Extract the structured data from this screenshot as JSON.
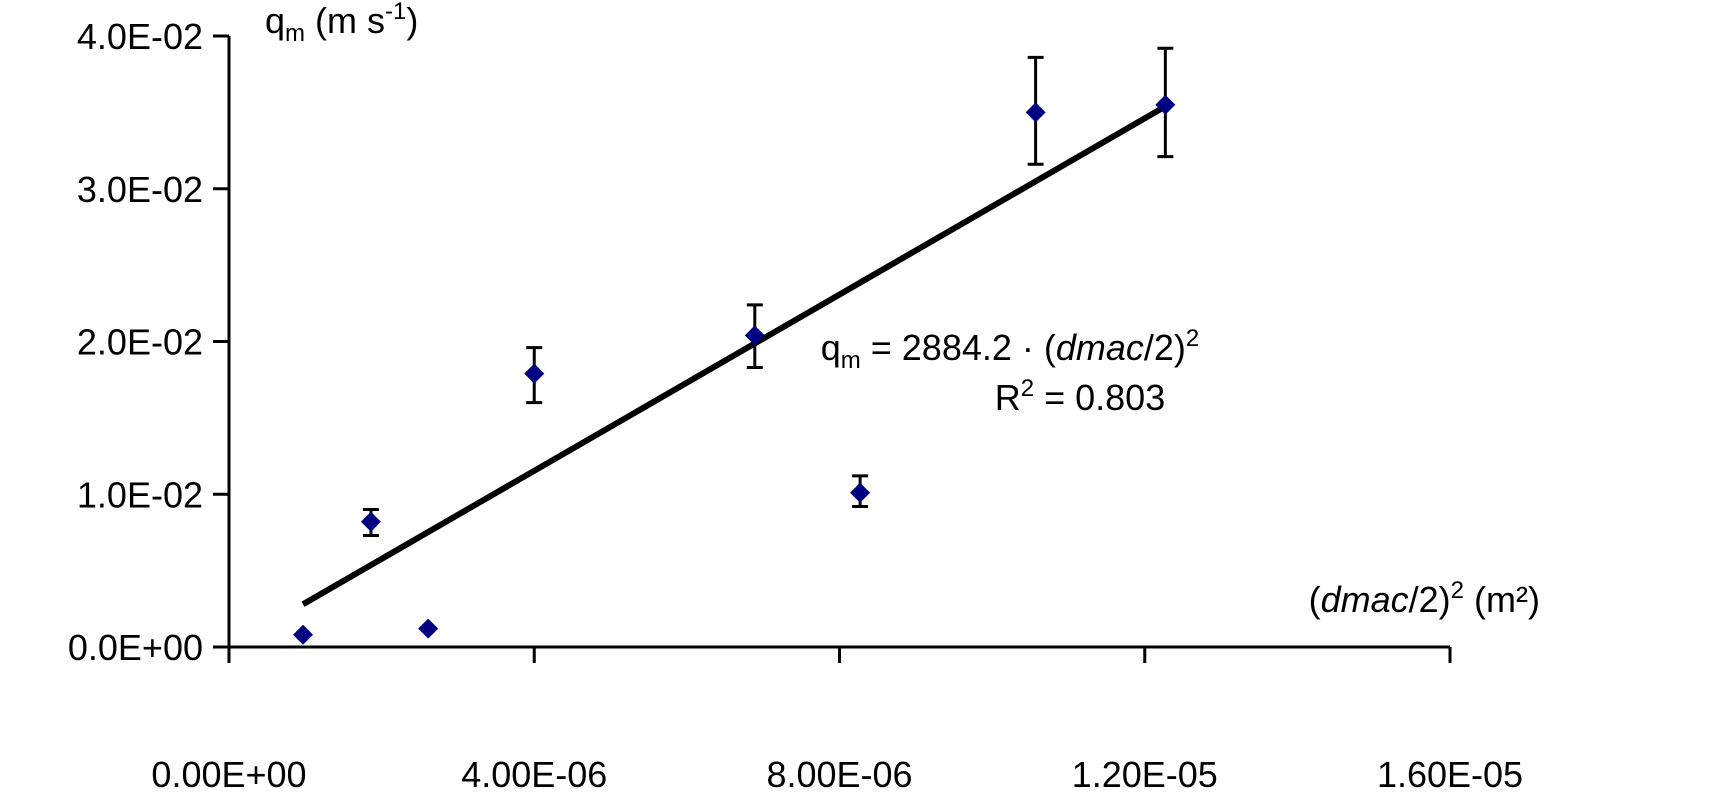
{
  "chart_data": {
    "type": "scatter",
    "title": "",
    "ylabel": {
      "base": "q",
      "sub": "m",
      "unit": " (m s",
      "sup": "-1",
      "close": ")"
    },
    "xlabel": {
      "open": "(",
      "var": "dmac",
      "rest": "/2)",
      "sup": "2",
      "unit": " (m²)"
    },
    "xlim": [
      0,
      1.6e-05
    ],
    "ylim": [
      0,
      0.04
    ],
    "xticks": [
      "0.00E+00",
      "4.00E-06",
      "8.00E-06",
      "1.20E-05",
      "1.60E-05"
    ],
    "xtick_values": [
      0,
      4e-06,
      8e-06,
      1.2e-05,
      1.6e-05
    ],
    "yticks": [
      "0.0E+00",
      "1.0E-02",
      "2.0E-02",
      "3.0E-02",
      "4.0E-02"
    ],
    "ytick_values": [
      0,
      0.01,
      0.02,
      0.03,
      0.04
    ],
    "grid": false,
    "series": [
      {
        "marker": "diamond",
        "color": "#000080",
        "points": [
          {
            "x": 9.7e-07,
            "y": 0.0008,
            "err_low": 0.0008,
            "err_high": 0.0008
          },
          {
            "x": 1.86e-06,
            "y": 0.0082,
            "err_low": 0.0073,
            "err_high": 0.009
          },
          {
            "x": 2.61e-06,
            "y": 0.0012,
            "err_low": 0.0012,
            "err_high": 0.0012
          },
          {
            "x": 4e-06,
            "y": 0.0179,
            "err_low": 0.016,
            "err_high": 0.0196
          },
          {
            "x": 6.89e-06,
            "y": 0.0204,
            "err_low": 0.0183,
            "err_high": 0.0224
          },
          {
            "x": 8.27e-06,
            "y": 0.0101,
            "err_low": 0.0092,
            "err_high": 0.0112
          },
          {
            "x": 1.057e-05,
            "y": 0.035,
            "err_low": 0.0316,
            "err_high": 0.0386
          },
          {
            "x": 1.227e-05,
            "y": 0.0355,
            "err_low": 0.0321,
            "err_high": 0.0392
          }
        ]
      }
    ],
    "trendline": {
      "type": "linear-through-origin",
      "slope": 2884.2,
      "x_range": [
        9.7e-07,
        1.227e-05
      ],
      "color": "#000000"
    },
    "equation": {
      "lhs": "q",
      "lhs_sub": "m",
      "text": " = 2884.2 · (",
      "var": "dmac",
      "rest": "/2)",
      "sup": "2"
    },
    "r2": {
      "label": "R",
      "sup": "2",
      "text": " = 0.803"
    }
  }
}
